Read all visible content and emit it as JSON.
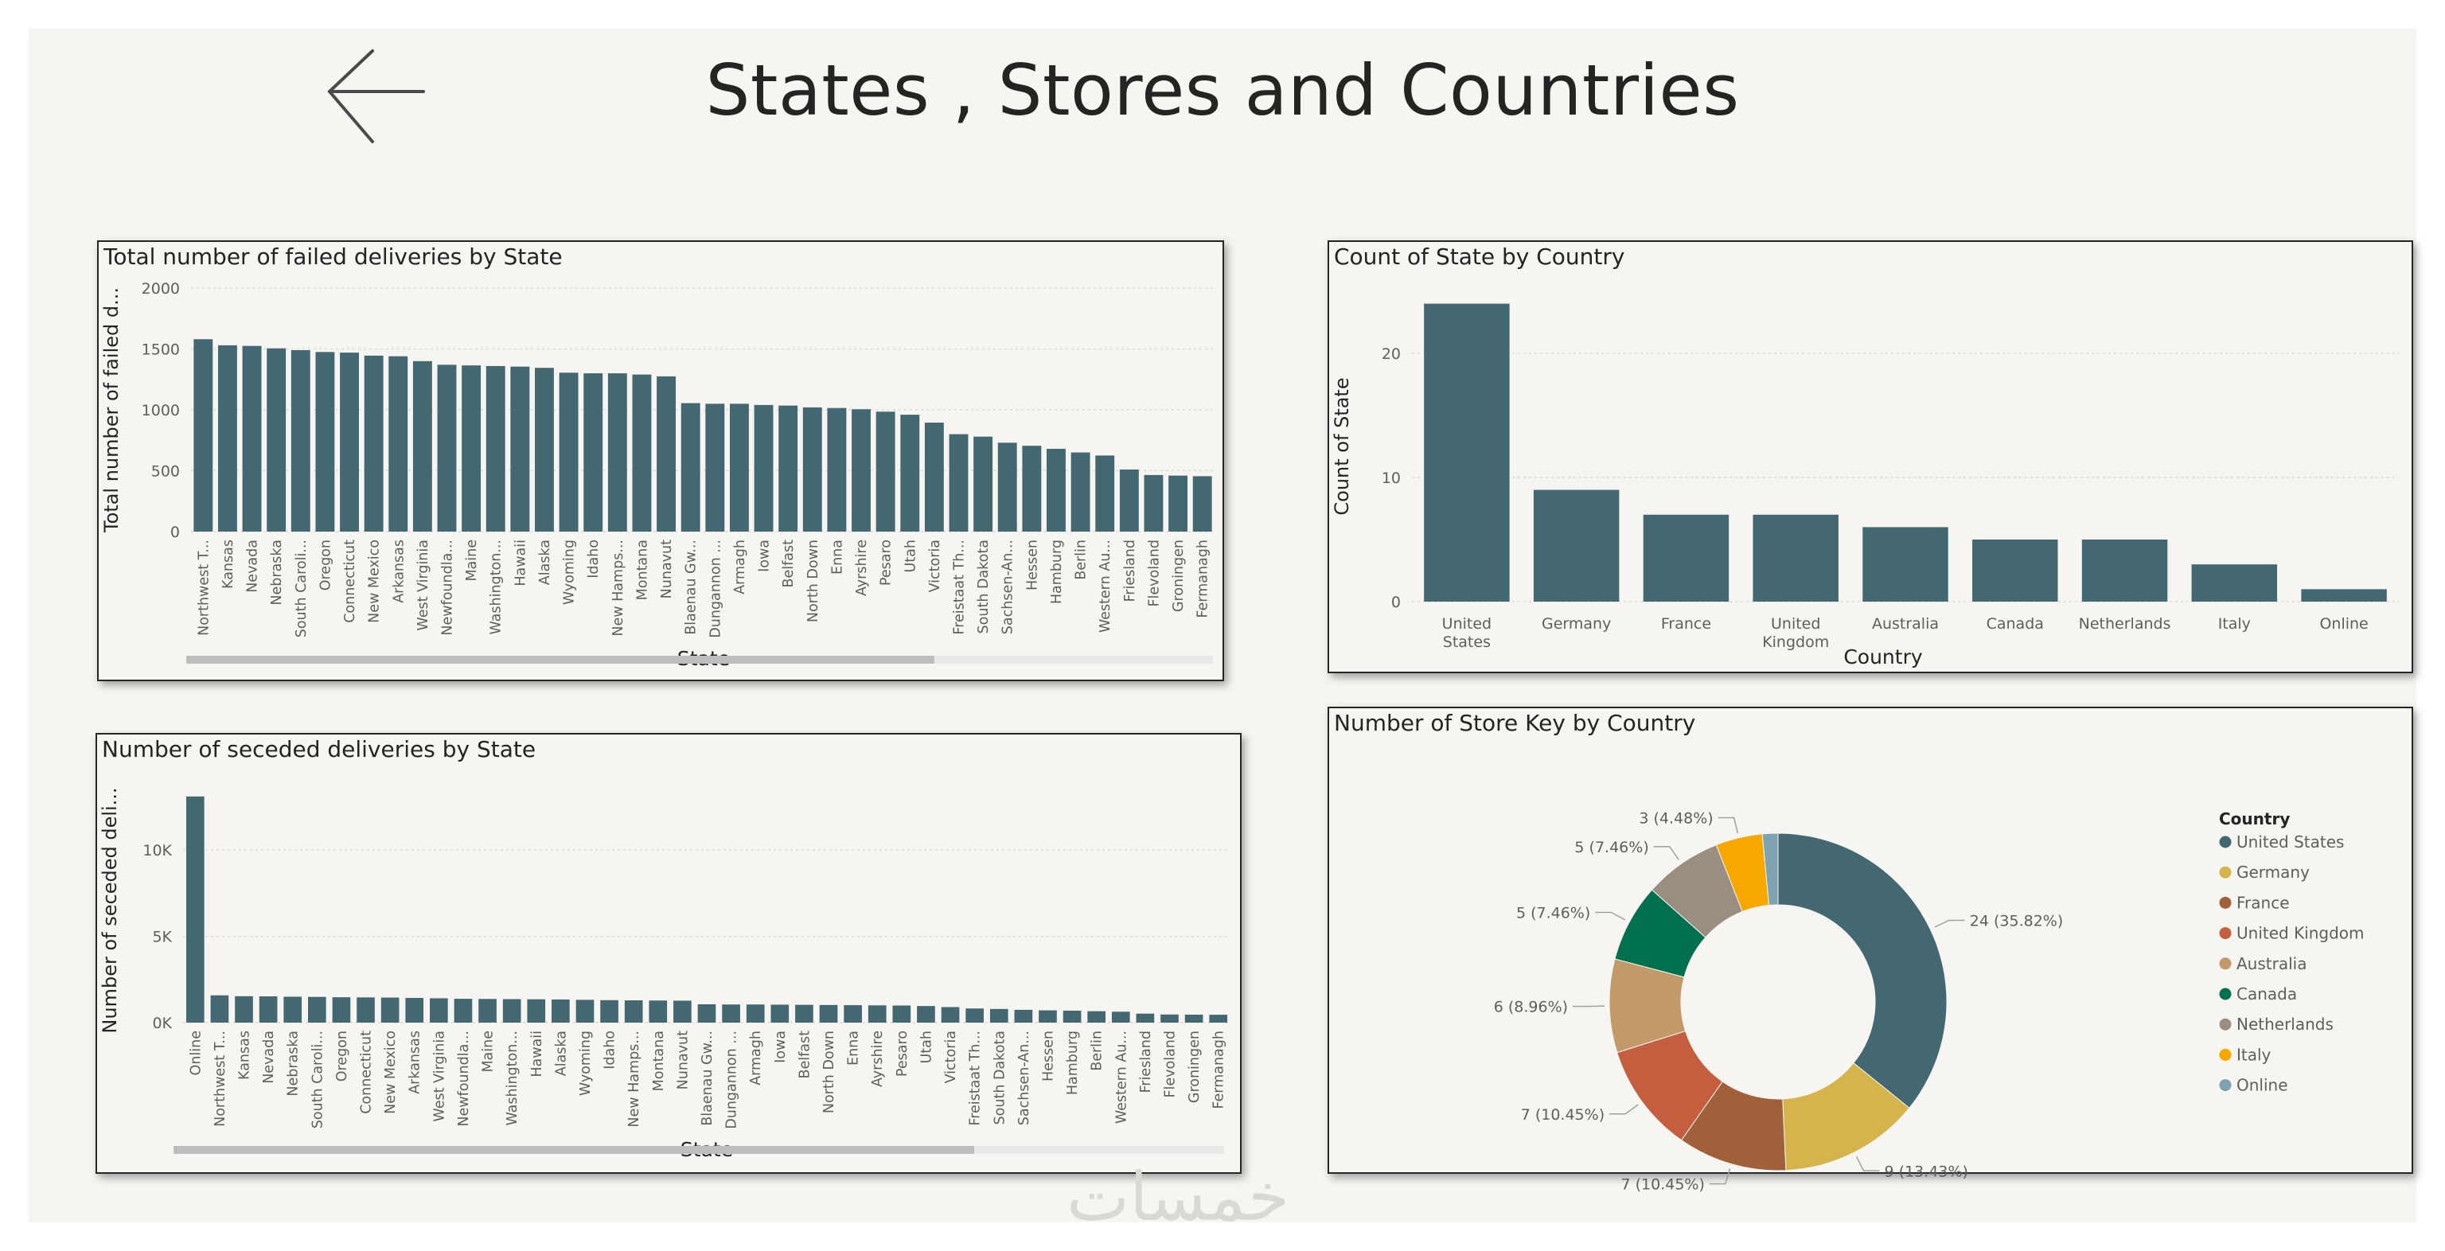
{
  "page": {
    "title": "States , Stores and Countries"
  },
  "watermark": "خمسات",
  "colors": {
    "bar": "#436872",
    "background": "#f6f5f1",
    "grid": "#dadada",
    "axis_text": "#605e5c"
  },
  "chart_data": [
    {
      "id": "failed",
      "type": "bar",
      "title": "Total number of failed deliveries by State",
      "xlabel": "State",
      "ylabel": "Total number of failed d...",
      "ylim": [
        0,
        2000
      ],
      "yticks": [
        "0",
        "500",
        "1000",
        "1500",
        "2000"
      ],
      "ytick_values": [
        0,
        500,
        1000,
        1500,
        2000
      ],
      "grid": true,
      "categories": [
        "Northwest T...",
        "Kansas",
        "Nevada",
        "Nebraska",
        "South Caroli...",
        "Oregon",
        "Connecticut",
        "New Mexico",
        "Arkansas",
        "West Virginia",
        "Newfoundla...",
        "Maine",
        "Washington...",
        "Hawaii",
        "Alaska",
        "Wyoming",
        "Idaho",
        "New Hamps...",
        "Montana",
        "Nunavut",
        "Blaenau Gw...",
        "Dungannon ...",
        "Armagh",
        "Iowa",
        "Belfast",
        "North Down",
        "Enna",
        "Ayrshire",
        "Pesaro",
        "Utah",
        "Victoria",
        "Freistaat Th...",
        "South Dakota",
        "Sachsen-An...",
        "Hessen",
        "Hamburg",
        "Berlin",
        "Western Au...",
        "Friesland",
        "Flevoland",
        "Groningen",
        "Fermanagh"
      ],
      "values": [
        1580,
        1530,
        1525,
        1505,
        1490,
        1475,
        1470,
        1445,
        1440,
        1400,
        1370,
        1365,
        1360,
        1355,
        1345,
        1305,
        1300,
        1300,
        1290,
        1275,
        1055,
        1050,
        1050,
        1040,
        1035,
        1020,
        1015,
        1005,
        985,
        960,
        895,
        800,
        780,
        730,
        705,
        680,
        650,
        625,
        510,
        465,
        460,
        455
      ]
    },
    {
      "id": "seceded",
      "type": "bar",
      "title": "Number of seceded deliveries by State",
      "xlabel": "State",
      "ylabel": "Number of seceded deli...",
      "ylim": [
        0,
        13000
      ],
      "yticks": [
        "0K",
        "5K",
        "10K"
      ],
      "ytick_values": [
        0,
        5000,
        10000
      ],
      "grid": true,
      "categories": [
        "Online",
        "Northwest T...",
        "Kansas",
        "Nevada",
        "Nebraska",
        "South Caroli...",
        "Oregon",
        "Connecticut",
        "New Mexico",
        "Arkansas",
        "West Virginia",
        "Newfoundla...",
        "Maine",
        "Washington...",
        "Hawaii",
        "Alaska",
        "Wyoming",
        "Idaho",
        "New Hamps...",
        "Montana",
        "Nunavut",
        "Blaenau Gw...",
        "Dungannon ...",
        "Armagh",
        "Iowa",
        "Belfast",
        "North Down",
        "Enna",
        "Ayrshire",
        "Pesaro",
        "Utah",
        "Victoria",
        "Freistaat Th...",
        "South Dakota",
        "Sachsen-An...",
        "Hessen",
        "Hamburg",
        "Berlin",
        "Western Au...",
        "Friesland",
        "Flevoland",
        "Groningen",
        "Fermanagh"
      ],
      "values": [
        13100,
        1580,
        1530,
        1520,
        1500,
        1490,
        1470,
        1460,
        1450,
        1430,
        1410,
        1380,
        1370,
        1360,
        1350,
        1340,
        1320,
        1300,
        1290,
        1280,
        1270,
        1060,
        1050,
        1050,
        1040,
        1030,
        1020,
        1010,
        1000,
        990,
        960,
        900,
        820,
        790,
        740,
        710,
        690,
        660,
        630,
        520,
        470,
        460,
        455
      ]
    },
    {
      "id": "state-by-country",
      "type": "bar",
      "title": "Count of State by Country",
      "xlabel": "Country",
      "ylabel": "Count of State",
      "ylim": [
        0,
        25
      ],
      "yticks": [
        "0",
        "10",
        "20"
      ],
      "ytick_values": [
        0,
        10,
        20
      ],
      "grid": true,
      "categories": [
        "United States",
        "Germany",
        "France",
        "United Kingdom",
        "Australia",
        "Canada",
        "Netherlands",
        "Italy",
        "Online"
      ],
      "category_lines": [
        [
          "United",
          "States"
        ],
        [
          "Germany"
        ],
        [
          "France"
        ],
        [
          "United",
          "Kingdom"
        ],
        [
          "Australia"
        ],
        [
          "Canada"
        ],
        [
          "Netherlands"
        ],
        [
          "Italy"
        ],
        [
          "Online"
        ]
      ],
      "values": [
        24,
        9,
        7,
        7,
        6,
        5,
        5,
        3,
        1
      ]
    },
    {
      "id": "store-by-country",
      "type": "pie",
      "donut": true,
      "title": "Number of Store Key by Country",
      "legend_title": "Country",
      "legend_position": "right",
      "slices": [
        {
          "label": "United States",
          "value": 24,
          "pct": "35.82%",
          "color": "#436872"
        },
        {
          "label": "Germany",
          "value": 9,
          "pct": "13.43%",
          "color": "#d5b44b"
        },
        {
          "label": "France",
          "value": 7,
          "pct": "10.45%",
          "color": "#a0613a"
        },
        {
          "label": "United Kingdom",
          "value": 7,
          "pct": "10.45%",
          "color": "#c55d3f"
        },
        {
          "label": "Australia",
          "value": 6,
          "pct": "8.96%",
          "color": "#c29a6a"
        },
        {
          "label": "Canada",
          "value": 5,
          "pct": "7.46%",
          "color": "#00704f"
        },
        {
          "label": "Netherlands",
          "value": 5,
          "pct": "7.46%",
          "color": "#9a8e80"
        },
        {
          "label": "Italy",
          "value": 3,
          "pct": "4.48%",
          "color": "#f6a800"
        },
        {
          "label": "Online",
          "value": 1,
          "pct": "1.49%",
          "color": "#7ea2b0"
        }
      ],
      "data_labels": [
        "24 (35.82%)",
        "9 (13.43%)",
        "7 (10.45%)",
        "7 (10.45%)",
        "6 (8.96%)",
        "5 (7.46%)",
        "5 (7.46%)",
        "3 (4.48%)"
      ]
    }
  ]
}
